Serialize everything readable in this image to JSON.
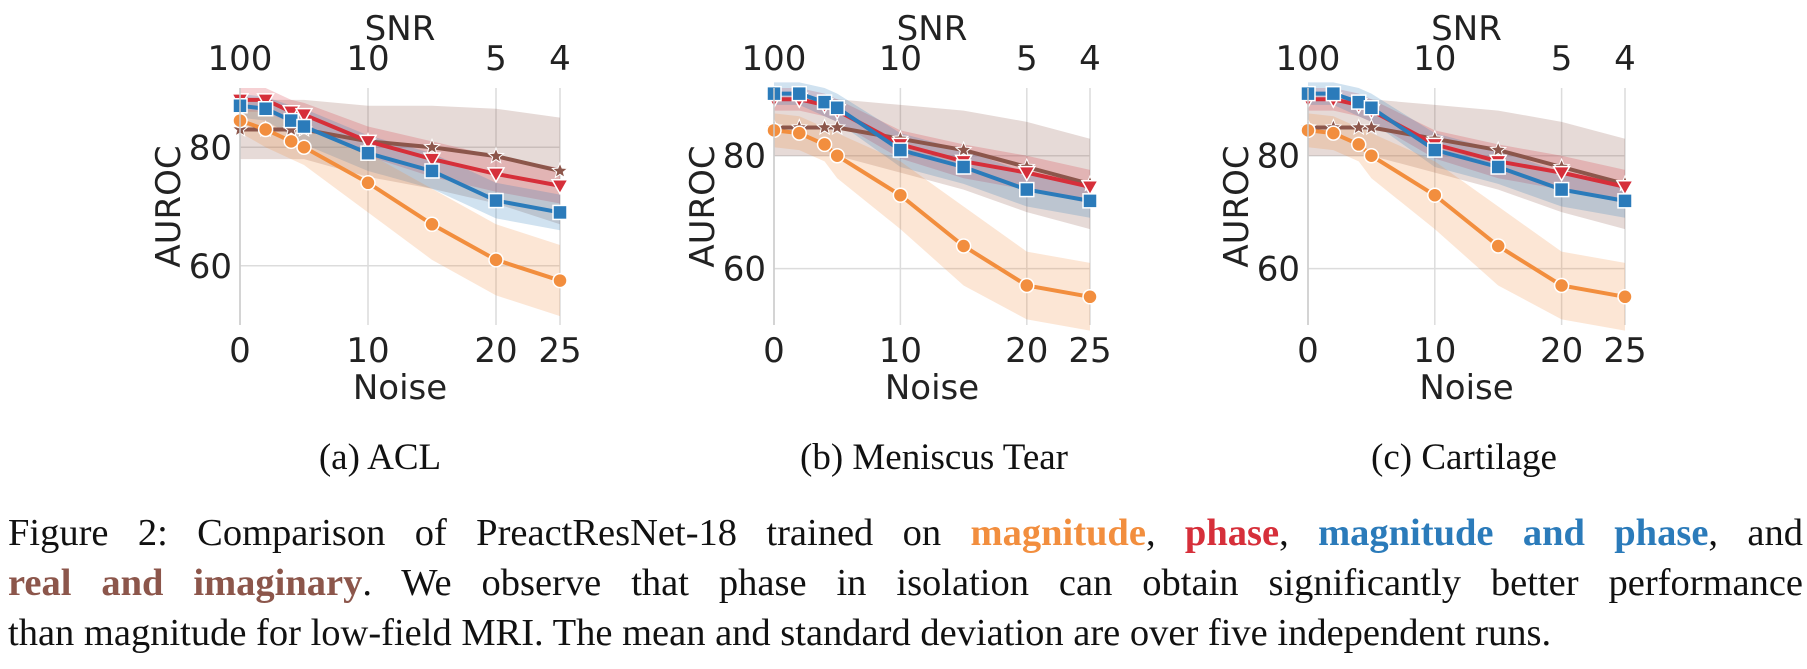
{
  "colors": {
    "magnitude": "#f28e3e",
    "phase": "#d62f3a",
    "magnitude_and_phase": "#2b7bba",
    "real_and_imaginary": "#8c564b"
  },
  "chart_data": [
    {
      "type": "line",
      "subcaption": "(a) ACL",
      "xlabel": "Noise",
      "x2label": "SNR",
      "ylabel": "AUROC",
      "xlim": [
        0,
        25
      ],
      "ylim": [
        50,
        90
      ],
      "x_ticks": [
        "0",
        "10",
        "20",
        "25"
      ],
      "x2_ticks": [
        "100",
        "10",
        "5",
        "4"
      ],
      "y_ticks": [
        "60",
        "80"
      ],
      "series": [
        {
          "key": "real_and_imaginary",
          "marker": "star",
          "x": [
            0,
            2,
            4,
            5,
            10,
            15,
            20,
            25
          ],
          "y": [
            83,
            83,
            83,
            83,
            81,
            80,
            78.5,
            76
          ],
          "band": [
            5,
            5,
            5,
            5,
            6,
            7,
            8,
            9
          ]
        },
        {
          "key": "phase",
          "marker": "triangle",
          "x": [
            0,
            2,
            4,
            5,
            10,
            15,
            20,
            25
          ],
          "y": [
            88,
            88,
            86,
            85.5,
            81,
            78,
            75.5,
            73.5
          ],
          "band": [
            2,
            2,
            2,
            2,
            2.5,
            3,
            3,
            3
          ]
        },
        {
          "key": "magnitude_and_phase",
          "marker": "square",
          "x": [
            0,
            2,
            4,
            5,
            10,
            15,
            20,
            25
          ],
          "y": [
            87,
            86.5,
            84.5,
            83.5,
            79,
            76,
            71,
            69
          ],
          "band": [
            2,
            2,
            2.5,
            3,
            3,
            3,
            3,
            3
          ]
        },
        {
          "key": "magnitude",
          "marker": "circle",
          "x": [
            0,
            2,
            4,
            5,
            10,
            15,
            20,
            25
          ],
          "y": [
            84.5,
            83,
            81,
            80,
            74,
            67,
            61,
            57.5
          ],
          "band": [
            2,
            3,
            3,
            3,
            5,
            6,
            6,
            6
          ]
        }
      ]
    },
    {
      "type": "line",
      "subcaption": "(b) Meniscus Tear",
      "xlabel": "Noise",
      "x2label": "SNR",
      "ylabel": "AUROC",
      "xlim": [
        0,
        25
      ],
      "ylim": [
        50,
        92
      ],
      "x_ticks": [
        "0",
        "10",
        "20",
        "25"
      ],
      "x2_ticks": [
        "100",
        "10",
        "5",
        "4"
      ],
      "y_ticks": [
        "60",
        "80"
      ],
      "series": [
        {
          "key": "real_and_imaginary",
          "marker": "star",
          "x": [
            0,
            2,
            4,
            5,
            10,
            15,
            20,
            25
          ],
          "y": [
            85,
            85,
            85,
            85,
            83,
            81,
            78,
            75
          ],
          "band": [
            5,
            5,
            5,
            5,
            6,
            7,
            8,
            8
          ]
        },
        {
          "key": "phase",
          "marker": "triangle",
          "x": [
            0,
            2,
            4,
            5,
            10,
            15,
            20,
            25
          ],
          "y": [
            90,
            90,
            89,
            88,
            82,
            79,
            77,
            74.5
          ],
          "band": [
            2,
            2,
            2,
            2,
            2.5,
            3,
            3,
            3
          ]
        },
        {
          "key": "magnitude_and_phase",
          "marker": "square",
          "x": [
            0,
            2,
            4,
            5,
            10,
            15,
            20,
            25
          ],
          "y": [
            91,
            91,
            89.5,
            88.5,
            81,
            78,
            74,
            72
          ],
          "band": [
            2,
            2,
            2.5,
            2.5,
            3,
            3,
            3,
            3
          ]
        },
        {
          "key": "magnitude",
          "marker": "circle",
          "x": [
            0,
            2,
            4,
            5,
            10,
            15,
            20,
            25
          ],
          "y": [
            84.5,
            84,
            82,
            80,
            73,
            64,
            57,
            55
          ],
          "band": [
            3,
            3,
            3,
            4,
            6,
            7,
            6,
            6
          ]
        }
      ]
    },
    {
      "type": "line",
      "subcaption": "(c) Cartilage",
      "xlabel": "Noise",
      "x2label": "SNR",
      "ylabel": "AUROC",
      "xlim": [
        0,
        25
      ],
      "ylim": [
        50,
        92
      ],
      "x_ticks": [
        "0",
        "10",
        "20",
        "25"
      ],
      "x2_ticks": [
        "100",
        "10",
        "5",
        "4"
      ],
      "y_ticks": [
        "60",
        "80"
      ],
      "series": [
        {
          "key": "real_and_imaginary",
          "marker": "star",
          "x": [
            0,
            2,
            4,
            5,
            10,
            15,
            20,
            25
          ],
          "y": [
            85,
            85,
            85,
            85,
            83,
            81,
            78,
            75
          ],
          "band": [
            5,
            5,
            5,
            5,
            6,
            7,
            8,
            8
          ]
        },
        {
          "key": "phase",
          "marker": "triangle",
          "x": [
            0,
            2,
            4,
            5,
            10,
            15,
            20,
            25
          ],
          "y": [
            90,
            90,
            89,
            88,
            82,
            79,
            77,
            74.5
          ],
          "band": [
            2,
            2,
            2,
            2,
            2.5,
            3,
            3,
            3
          ]
        },
        {
          "key": "magnitude_and_phase",
          "marker": "square",
          "x": [
            0,
            2,
            4,
            5,
            10,
            15,
            20,
            25
          ],
          "y": [
            91,
            91,
            89.5,
            88.5,
            81,
            78,
            74,
            72
          ],
          "band": [
            2,
            2,
            2.5,
            2.5,
            3,
            3,
            3,
            3
          ]
        },
        {
          "key": "magnitude",
          "marker": "circle",
          "x": [
            0,
            2,
            4,
            5,
            10,
            15,
            20,
            25
          ],
          "y": [
            84.5,
            84,
            82,
            80,
            73,
            64,
            57,
            55
          ],
          "band": [
            3,
            3,
            3,
            4,
            6,
            7,
            6,
            6
          ]
        }
      ]
    }
  ],
  "caption": {
    "prefix": "Figure 2: Comparison of PreactResNet-18 trained on ",
    "magnitude": "magnitude",
    "sep1": ", ",
    "phase": "phase",
    "sep2": ", ",
    "magnitude_and_phase": "magnitude and phase",
    "sep3": ", and",
    "real_and_imaginary": "real and imaginary",
    "rest_line2": ". We observe that phase in isolation can obtain significantly better performance",
    "line3": "than magnitude for low-field MRI. The mean and standard deviation are over five independent runs."
  }
}
